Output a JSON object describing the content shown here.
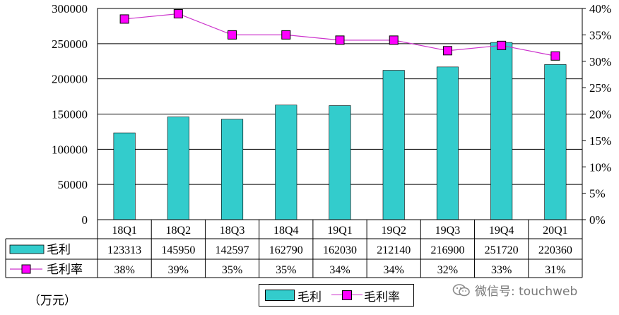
{
  "chart_data": {
    "type": "bar",
    "categories": [
      "18Q1",
      "18Q2",
      "18Q3",
      "18Q4",
      "19Q1",
      "19Q2",
      "19Q3",
      "19Q4",
      "20Q1"
    ],
    "series": [
      {
        "name": "毛利",
        "type": "bar",
        "values": [
          123313,
          145950,
          142597,
          162790,
          162030,
          212140,
          216900,
          251720,
          220360
        ],
        "color": "#33cccc"
      },
      {
        "name": "毛利率",
        "type": "line",
        "axis": "right",
        "values": [
          38,
          39,
          35,
          35,
          34,
          34,
          32,
          33,
          31
        ],
        "labels": [
          "38%",
          "39%",
          "35%",
          "35%",
          "34%",
          "34%",
          "32%",
          "33%",
          "31%"
        ],
        "color": "#cc33cc",
        "marker_color": "#ff00ff"
      }
    ],
    "y_left": {
      "ylim": [
        0,
        300000
      ],
      "ticks": [
        "0",
        "50000",
        "100000",
        "150000",
        "200000",
        "250000",
        "300000"
      ]
    },
    "y_right": {
      "ylim": [
        0,
        40
      ],
      "ticks": [
        "0%",
        "5%",
        "10%",
        "15%",
        "20%",
        "25%",
        "30%",
        "35%",
        "40%"
      ]
    },
    "grid": true,
    "legend_position": "bottom",
    "unit_label": "（万元）"
  },
  "watermark": "微信号: touchweb"
}
